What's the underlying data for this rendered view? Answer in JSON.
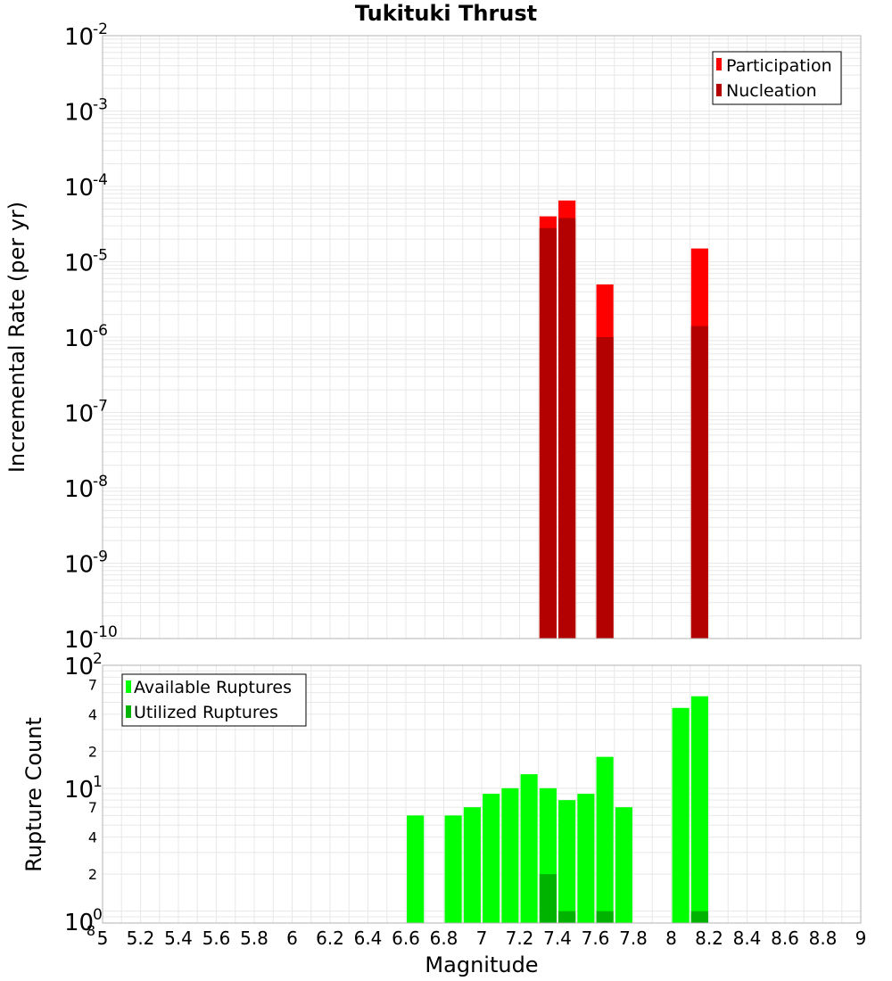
{
  "chart_data": [
    {
      "type": "bar",
      "title": "Tukituki Thrust",
      "xlabel": "",
      "ylabel": "Incremental Rate (per yr)",
      "xlim": [
        5,
        9
      ],
      "ylim": [
        1e-10,
        0.01
      ],
      "yscale": "log",
      "grid": true,
      "legend_position": "top-right",
      "series": [
        {
          "name": "Participation",
          "color": "#ff0000",
          "points": [
            {
              "x": 7.35,
              "y": 4e-05
            },
            {
              "x": 7.45,
              "y": 6.5e-05
            },
            {
              "x": 7.65,
              "y": 5e-06
            },
            {
              "x": 8.15,
              "y": 1.5e-05
            }
          ]
        },
        {
          "name": "Nucleation",
          "color": "#b30000",
          "points": [
            {
              "x": 7.35,
              "y": 2.8e-05
            },
            {
              "x": 7.45,
              "y": 3.8e-05
            },
            {
              "x": 7.65,
              "y": 1e-06
            },
            {
              "x": 8.15,
              "y": 1.4e-06
            }
          ]
        }
      ]
    },
    {
      "type": "bar",
      "title": "",
      "xlabel": "Magnitude",
      "ylabel": "Rupture Count",
      "xlim": [
        5,
        9
      ],
      "ylim": [
        0.8,
        100
      ],
      "yscale": "log",
      "grid": true,
      "legend_position": "top-left",
      "series": [
        {
          "name": "Available Ruptures",
          "color": "#00ff00",
          "points": [
            {
              "x": 6.65,
              "y": 6
            },
            {
              "x": 6.85,
              "y": 6
            },
            {
              "x": 6.95,
              "y": 7
            },
            {
              "x": 7.05,
              "y": 9
            },
            {
              "x": 7.15,
              "y": 10
            },
            {
              "x": 7.25,
              "y": 13
            },
            {
              "x": 7.35,
              "y": 10
            },
            {
              "x": 7.45,
              "y": 8
            },
            {
              "x": 7.55,
              "y": 9
            },
            {
              "x": 7.65,
              "y": 18
            },
            {
              "x": 7.75,
              "y": 7
            },
            {
              "x": 8.05,
              "y": 45
            },
            {
              "x": 8.15,
              "y": 56
            }
          ]
        },
        {
          "name": "Utilized Ruptures",
          "color": "#00b300",
          "points": [
            {
              "x": 7.35,
              "y": 2
            },
            {
              "x": 7.45,
              "y": 1
            },
            {
              "x": 7.65,
              "y": 1
            },
            {
              "x": 8.15,
              "y": 1
            }
          ]
        }
      ]
    }
  ],
  "x_ticks": [
    "5",
    "5.2",
    "5.4",
    "5.6",
    "5.8",
    "6",
    "6.2",
    "6.4",
    "6.6",
    "6.8",
    "7",
    "7.2",
    "7.4",
    "7.6",
    "7.8",
    "8",
    "8.2",
    "8.4",
    "8.6",
    "8.8",
    "9"
  ],
  "top_y_ticks": [
    {
      "base": "10",
      "exp": "-2"
    },
    {
      "base": "10",
      "exp": "-3"
    },
    {
      "base": "10",
      "exp": "-4"
    },
    {
      "base": "10",
      "exp": "-5"
    },
    {
      "base": "10",
      "exp": "-6"
    },
    {
      "base": "10",
      "exp": "-7"
    },
    {
      "base": "10",
      "exp": "-8"
    },
    {
      "base": "10",
      "exp": "-9"
    },
    {
      "base": "10",
      "exp": "-10"
    }
  ],
  "bottom_y_major_ticks": [
    {
      "base": "10",
      "exp": "2"
    },
    {
      "base": "10",
      "exp": "1"
    },
    {
      "base": "10",
      "exp": "0"
    }
  ],
  "bottom_y_minor_ticks": [
    "7",
    "4",
    "2",
    "7",
    "4",
    "2",
    "8"
  ],
  "colors": {
    "grid": "#e8e8e8",
    "plot_border": "#b3b3b3",
    "background": "#ffffff"
  }
}
